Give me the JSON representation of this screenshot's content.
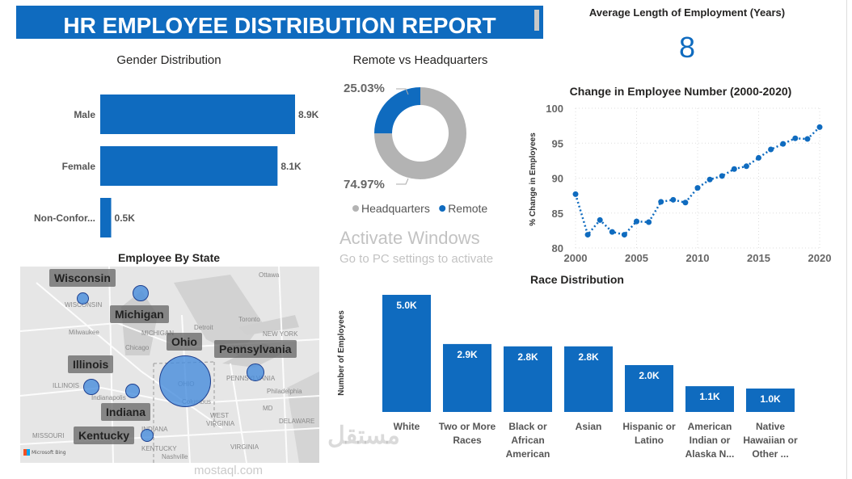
{
  "header": {
    "title": "HR EMPLOYEE DISTRIBUTION REPORT"
  },
  "kpi": {
    "title": "Average Length of Employment (Years)",
    "value": "8"
  },
  "map": {
    "title": "Employee By State",
    "attribution": "Microsoft Bing",
    "states": [
      "Wisconsin",
      "Michigan",
      "Ohio",
      "Pennsylvania",
      "Illinois",
      "Indiana",
      "Kentucky"
    ],
    "place_names": [
      "Ottawa",
      "Toronto",
      "Milwaukee",
      "Chicago",
      "Detroit",
      "NEW YORK",
      "Philadelphia",
      "Columbus",
      "Indianapolis",
      "WEST VIRGINIA",
      "VIRGINIA",
      "MISSOURI",
      "Nashville",
      "DELAWARE",
      "MD",
      "KENTUCKY",
      "INDIANA",
      "OHIO",
      "ILLINOIS",
      "MICHIGAN",
      "WISCONSIN",
      "PENNSYLVANIA"
    ]
  },
  "watermarks": {
    "activate": "Activate Windows",
    "activate_sub": "Go to PC settings to activate",
    "mostaql": "mostaql.com",
    "mostaql_logo": "مستقل"
  },
  "colors": {
    "accent": "#0f6bbf",
    "secondary": "#b3b3b3"
  },
  "chart_data": [
    {
      "type": "bar",
      "orientation": "horizontal",
      "title": "Gender Distribution",
      "categories": [
        "Male",
        "Female",
        "Non-Confor..."
      ],
      "values": [
        8900,
        8100,
        500
      ],
      "data_labels": [
        "8.9K",
        "8.1K",
        "0.5K"
      ]
    },
    {
      "type": "pie",
      "variant": "donut",
      "title": "Remote vs Headquarters",
      "categories": [
        "Headquarters",
        "Remote"
      ],
      "values": [
        74.97,
        25.03
      ],
      "data_labels": [
        "74.97%",
        "25.03%"
      ],
      "colors": [
        "#b3b3b3",
        "#0f6bbf"
      ],
      "legend": "bottom"
    },
    {
      "type": "line",
      "title": "Change in Employee Number (2000-2020)",
      "xlabel": "",
      "ylabel": "% Change in Employees",
      "x": [
        2000,
        2001,
        2002,
        2003,
        2004,
        2005,
        2006,
        2007,
        2008,
        2009,
        2010,
        2011,
        2012,
        2013,
        2014,
        2015,
        2016,
        2017,
        2018,
        2019,
        2020
      ],
      "y": [
        87.7,
        81.9,
        84.0,
        82.3,
        81.9,
        83.8,
        83.7,
        86.6,
        86.9,
        86.5,
        88.6,
        89.8,
        90.3,
        91.3,
        91.7,
        92.9,
        94.1,
        94.9,
        95.7,
        95.6,
        97.3
      ],
      "xticks": [
        2000,
        2005,
        2010,
        2015,
        2020
      ],
      "yticks": [
        80,
        85,
        90,
        95,
        100
      ],
      "ylim": [
        80,
        100
      ],
      "grid": true,
      "line_style": "dotted"
    },
    {
      "type": "bar",
      "title": "Race Distribution",
      "xlabel": "",
      "ylabel": "Number of Employees",
      "categories": [
        "White",
        "Two or More Races",
        "Black or African American",
        "Asian",
        "Hispanic or Latino",
        "American Indian or Alaska N...",
        "Native Hawaiian or Other ..."
      ],
      "values": [
        5000,
        2900,
        2800,
        2800,
        2000,
        1100,
        1000
      ],
      "data_labels": [
        "5.0K",
        "2.9K",
        "2.8K",
        "2.8K",
        "2.0K",
        "1.1K",
        "1.0K"
      ]
    }
  ]
}
